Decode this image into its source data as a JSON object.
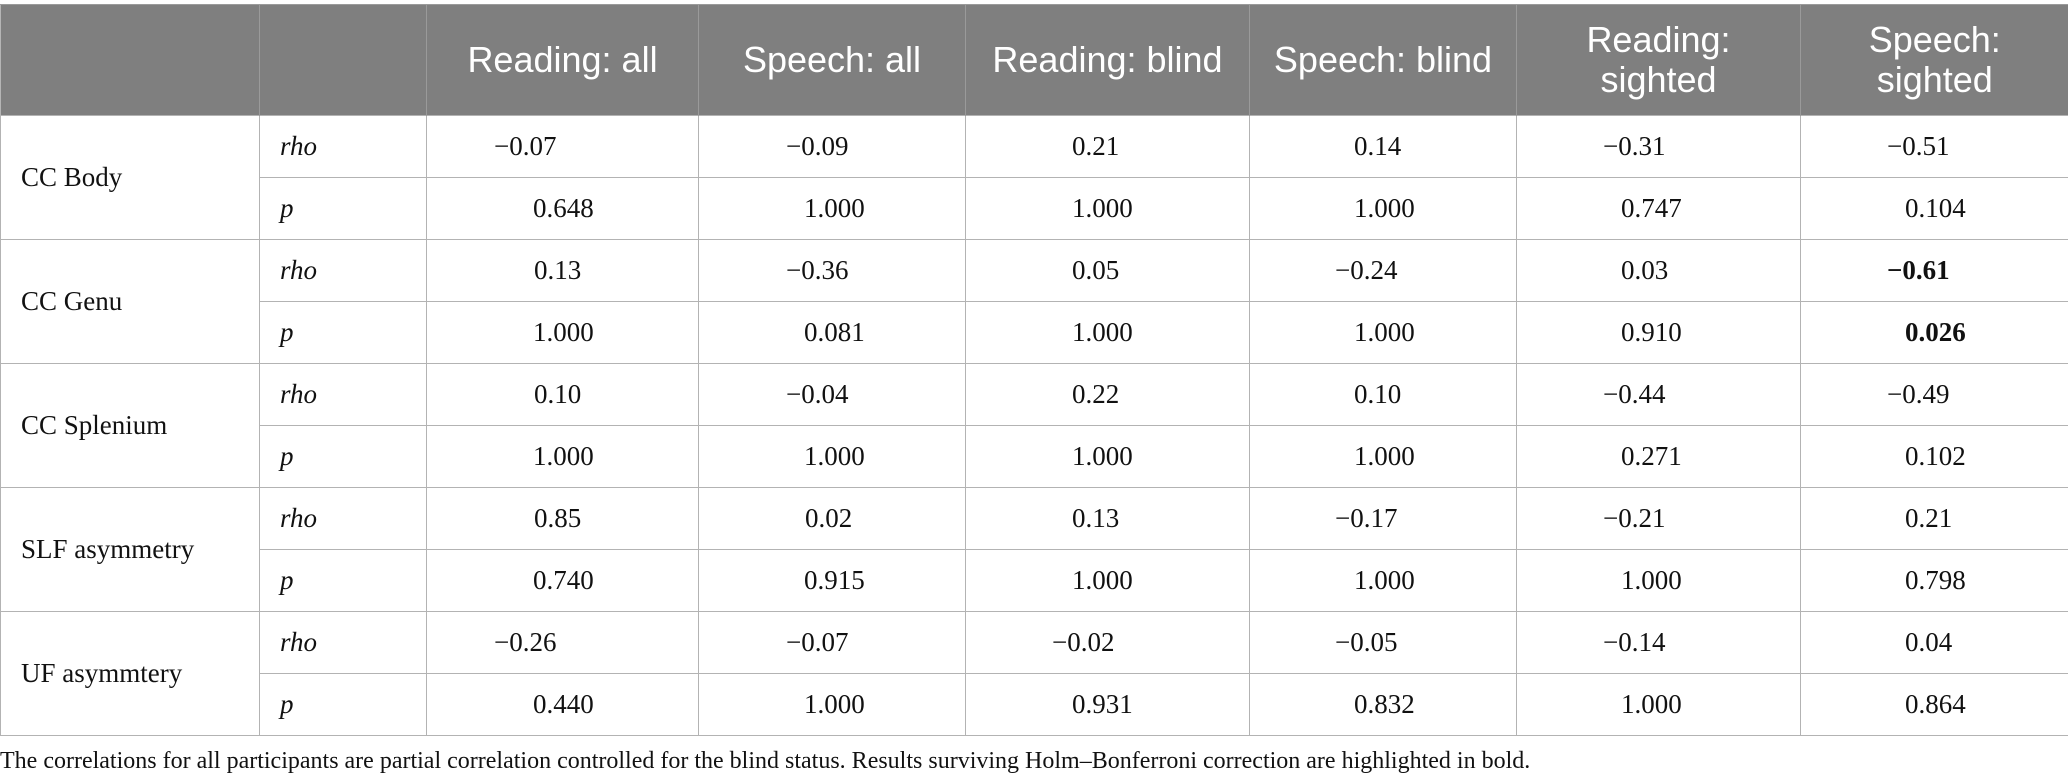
{
  "columns": [
    "",
    "",
    "Reading: all",
    "Speech: all",
    "Reading: blind",
    "Speech: blind",
    "Reading: sighted",
    "Speech: sighted"
  ],
  "rows": [
    {
      "label": "CC Body",
      "rho": [
        "−0.07",
        "−0.09",
        "0.21",
        "0.14",
        "−0.31",
        "−0.51"
      ],
      "p": [
        "0.648",
        "1.000",
        "1.000",
        "1.000",
        "0.747",
        "0.104"
      ]
    },
    {
      "label": "CC Genu",
      "rho": [
        "0.13",
        "−0.36",
        "0.05",
        "−0.24",
        "0.03",
        "−0.61"
      ],
      "p": [
        "1.000",
        "0.081",
        "1.000",
        "1.000",
        "0.910",
        "0.026"
      ]
    },
    {
      "label": "CC Splenium",
      "rho": [
        "0.10",
        "−0.04",
        "0.22",
        "0.10",
        "−0.44",
        "−0.49"
      ],
      "p": [
        "1.000",
        "1.000",
        "1.000",
        "1.000",
        "0.271",
        "0.102"
      ]
    },
    {
      "label": "SLF asymmetry",
      "rho": [
        "0.85",
        "0.02",
        "0.13",
        "−0.17",
        "−0.21",
        "0.21"
      ],
      "p": [
        "0.740",
        "0.915",
        "1.000",
        "1.000",
        "1.000",
        "0.798"
      ]
    },
    {
      "label": "UF asymmtery",
      "rho": [
        "−0.26",
        "−0.07",
        "−0.02",
        "−0.05",
        "−0.14",
        "0.04"
      ],
      "p": [
        "0.440",
        "1.000",
        "0.931",
        "0.832",
        "1.000",
        "0.864"
      ]
    }
  ],
  "stat_labels": {
    "rho": "rho",
    "p": "p"
  },
  "note": "The correlations for all participants are partial correlation controlled for the blind status. Results surviving Holm–Bonferroni correction are highlighted in bold."
}
